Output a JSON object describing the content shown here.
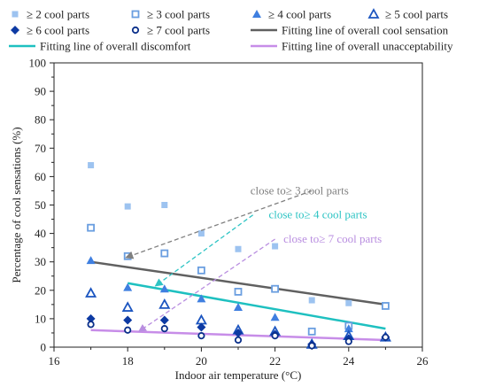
{
  "chart_data": {
    "type": "scatter",
    "title": "",
    "xlabel": "Indoor air temperature (°C)",
    "ylabel": "Percentage of  cool sensations (%)",
    "xlim": [
      16,
      26
    ],
    "ylim": [
      0,
      100
    ],
    "xticks": [
      16,
      18,
      20,
      22,
      24,
      26
    ],
    "yticks": [
      0,
      10,
      20,
      30,
      40,
      50,
      60,
      70,
      80,
      90,
      100
    ],
    "grid": false,
    "legend_position": "top",
    "series": [
      {
        "name": "≥ 2 cool parts",
        "marker": "square-filled",
        "color": "#9dc3f0",
        "x": [
          17,
          18,
          19,
          20,
          21,
          22,
          23,
          24,
          25
        ],
        "y": [
          64,
          49.5,
          50,
          40,
          34.5,
          35.5,
          16.5,
          15.5,
          14.5
        ]
      },
      {
        "name": "≥ 3 cool parts",
        "marker": "square-open",
        "color": "#6a9ee0",
        "x": [
          17,
          18,
          19,
          20,
          21,
          22,
          23,
          24,
          25
        ],
        "y": [
          42,
          32,
          33,
          27,
          19.5,
          20.5,
          5.5,
          7.5,
          14.5
        ]
      },
      {
        "name": "≥ 4 cool parts",
        "marker": "triangle-filled",
        "color": "#3f7fe0",
        "x": [
          17,
          18,
          19,
          20,
          21,
          22,
          23,
          24,
          25
        ],
        "y": [
          30.5,
          21,
          20.5,
          17,
          14,
          10.5,
          1.5,
          6.5,
          3.5
        ]
      },
      {
        "name": "≥ 5 cool parts",
        "marker": "triangle-open",
        "color": "#1b55c0",
        "x": [
          17,
          18,
          19,
          20,
          21,
          22,
          23,
          24,
          25
        ],
        "y": [
          19,
          14,
          15,
          9.5,
          6,
          5.5,
          1,
          4,
          3.5
        ]
      },
      {
        "name": "≥ 6 cool parts",
        "marker": "diamond-filled",
        "color": "#0d3aa3",
        "x": [
          17,
          18,
          19,
          20,
          21,
          22,
          23,
          24,
          25
        ],
        "y": [
          10,
          9.5,
          9.5,
          7,
          5,
          4.5,
          1,
          3,
          3.5
        ]
      },
      {
        "name": "≥ 7 cool parts",
        "marker": "circle-open",
        "color": "#0a2f8a",
        "x": [
          17,
          18,
          19,
          20,
          21,
          22,
          23,
          24,
          25
        ],
        "y": [
          8,
          6,
          6.5,
          4,
          2.5,
          4,
          0.5,
          2,
          3.5
        ]
      }
    ],
    "fit_lines": [
      {
        "name": "Fitting line of overall discomfort",
        "color": "#1ec0c0",
        "x": [
          18,
          25
        ],
        "y": [
          22.5,
          6.5
        ]
      },
      {
        "name": "Fitting line of overall cool sensation",
        "color": "#606060",
        "x": [
          17,
          25
        ],
        "y": [
          30,
          15
        ]
      },
      {
        "name": "Fitting line of overall unacceptability",
        "color": "#c78de8",
        "x": [
          17,
          25
        ],
        "y": [
          6,
          2.5
        ]
      }
    ],
    "annotations": [
      {
        "text": "close to≥ 3 cool parts",
        "color": "#808080",
        "text_at": [
          24,
          55
        ],
        "arrow_from": [
          23,
          55
        ],
        "arrow_to": [
          17.95,
          31.5
        ]
      },
      {
        "text": "close to≥ 4 cool parts",
        "color": "#2ec4c4",
        "text_at": [
          24.5,
          46.5
        ],
        "arrow_from": [
          21.4,
          46.5
        ],
        "arrow_to": [
          18.75,
          21.5
        ]
      },
      {
        "text": "close to≥ 7 cool parts",
        "color": "#b98ee0",
        "text_at": [
          24.9,
          38
        ],
        "arrow_from": [
          22,
          38
        ],
        "arrow_to": [
          18.3,
          5.5
        ]
      }
    ]
  }
}
